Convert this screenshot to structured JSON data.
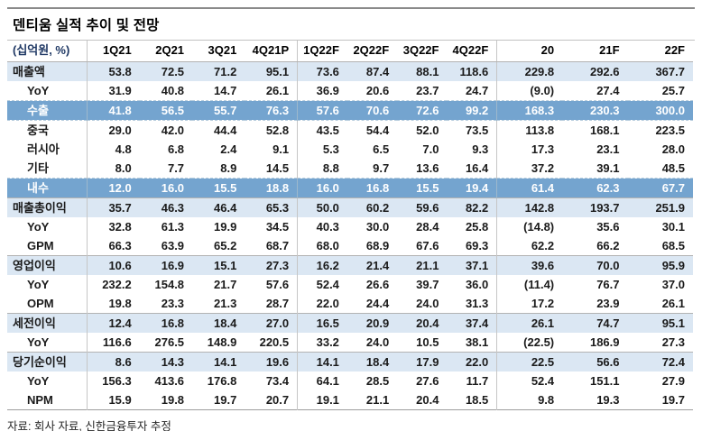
{
  "title": "덴티움 실적 추이 및 전망",
  "footer": "자료: 회사 자료, 신한금융투자 추정",
  "colors": {
    "section_row_bg": "#dbe7f3",
    "export_row_bg": "#74a4cf",
    "export_row_text": "#ffffff",
    "unit_header_text": "#1f3864",
    "rule_gray": "#8a8a8a"
  },
  "chart_data": {
    "type": "table",
    "title": "덴티움 실적 추이 및 전망",
    "unit_header": "(십억원, %)",
    "columns": [
      "1Q21",
      "2Q21",
      "3Q21",
      "4Q21P",
      "1Q22F",
      "2Q22F",
      "3Q22F",
      "4Q22F",
      "20",
      "21F",
      "22F"
    ],
    "rows": [
      {
        "label": "매출액",
        "style": "section",
        "values": [
          "53.8",
          "72.5",
          "71.2",
          "95.1",
          "73.6",
          "87.4",
          "88.1",
          "118.6",
          "229.8",
          "292.6",
          "367.7"
        ]
      },
      {
        "label": "YoY",
        "style": "sub",
        "values": [
          "31.9",
          "40.8",
          "14.7",
          "26.1",
          "36.9",
          "20.6",
          "23.7",
          "24.7",
          "(9.0)",
          "27.4",
          "25.7"
        ]
      },
      {
        "label": "수출",
        "style": "export",
        "values": [
          "41.8",
          "56.5",
          "55.7",
          "76.3",
          "57.6",
          "70.6",
          "72.6",
          "99.2",
          "168.3",
          "230.3",
          "300.0"
        ]
      },
      {
        "label": "중국",
        "style": "sub",
        "values": [
          "29.0",
          "42.0",
          "44.4",
          "52.8",
          "43.5",
          "54.4",
          "52.0",
          "73.5",
          "113.8",
          "168.1",
          "223.5"
        ]
      },
      {
        "label": "러시아",
        "style": "sub",
        "values": [
          "4.8",
          "6.8",
          "2.4",
          "9.1",
          "5.3",
          "6.5",
          "7.0",
          "9.3",
          "17.3",
          "23.1",
          "28.0"
        ]
      },
      {
        "label": "기타",
        "style": "sub",
        "values": [
          "8.0",
          "7.7",
          "8.9",
          "14.5",
          "8.8",
          "9.7",
          "13.6",
          "16.4",
          "37.2",
          "39.1",
          "48.5"
        ]
      },
      {
        "label": "내수",
        "style": "export",
        "values": [
          "12.0",
          "16.0",
          "15.5",
          "18.8",
          "16.0",
          "16.8",
          "15.5",
          "19.4",
          "61.4",
          "62.3",
          "67.7"
        ]
      },
      {
        "label": "매출총이익",
        "style": "section",
        "values": [
          "35.7",
          "46.3",
          "46.4",
          "65.3",
          "50.0",
          "60.2",
          "59.6",
          "82.2",
          "142.8",
          "193.7",
          "251.9"
        ]
      },
      {
        "label": "YoY",
        "style": "sub",
        "values": [
          "32.8",
          "61.3",
          "19.9",
          "34.5",
          "40.3",
          "30.0",
          "28.4",
          "25.8",
          "(14.8)",
          "35.6",
          "30.1"
        ]
      },
      {
        "label": "GPM",
        "style": "sub",
        "values": [
          "66.3",
          "63.9",
          "65.2",
          "68.7",
          "68.0",
          "68.9",
          "67.6",
          "69.3",
          "62.2",
          "66.2",
          "68.5"
        ]
      },
      {
        "label": "영업이익",
        "style": "section",
        "values": [
          "10.6",
          "16.9",
          "15.1",
          "27.3",
          "16.2",
          "21.4",
          "21.1",
          "37.1",
          "39.6",
          "70.0",
          "95.9"
        ]
      },
      {
        "label": "YoY",
        "style": "sub",
        "values": [
          "232.2",
          "154.8",
          "21.7",
          "57.6",
          "52.4",
          "26.6",
          "39.7",
          "36.0",
          "(11.4)",
          "76.7",
          "37.0"
        ]
      },
      {
        "label": "OPM",
        "style": "sub",
        "values": [
          "19.8",
          "23.3",
          "21.3",
          "28.7",
          "22.0",
          "24.4",
          "24.0",
          "31.3",
          "17.2",
          "23.9",
          "26.1"
        ]
      },
      {
        "label": "세전이익",
        "style": "section",
        "values": [
          "12.4",
          "16.8",
          "18.4",
          "27.0",
          "16.5",
          "20.9",
          "20.4",
          "37.4",
          "26.1",
          "74.7",
          "95.1"
        ]
      },
      {
        "label": "YoY",
        "style": "sub",
        "values": [
          "116.6",
          "276.5",
          "148.9",
          "220.5",
          "33.2",
          "24.0",
          "10.5",
          "38.1",
          "(22.5)",
          "186.9",
          "27.3"
        ]
      },
      {
        "label": "당기순이익",
        "style": "section",
        "values": [
          "8.6",
          "14.3",
          "14.1",
          "19.6",
          "14.1",
          "18.4",
          "17.9",
          "22.0",
          "22.5",
          "56.6",
          "72.4"
        ]
      },
      {
        "label": "YoY",
        "style": "sub",
        "values": [
          "156.3",
          "413.6",
          "176.8",
          "73.4",
          "64.1",
          "28.5",
          "27.6",
          "11.7",
          "52.4",
          "151.1",
          "27.9"
        ]
      },
      {
        "label": "NPM",
        "style": "sub",
        "values": [
          "15.9",
          "19.8",
          "19.7",
          "20.7",
          "19.1",
          "21.1",
          "20.4",
          "18.5",
          "9.8",
          "19.3",
          "19.7"
        ]
      }
    ]
  }
}
